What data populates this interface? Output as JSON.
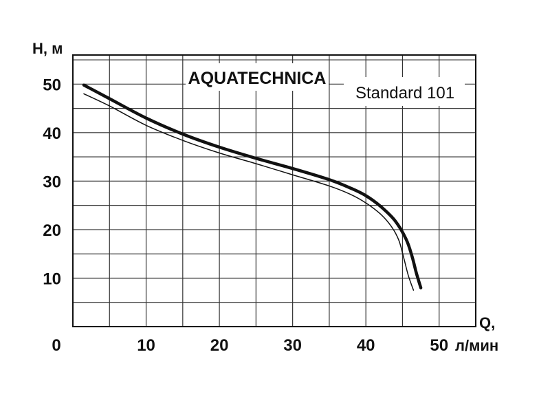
{
  "chart_data": {
    "type": "line",
    "title": "AQUATECHNICA",
    "subtitle": "Standard 101",
    "xlabel_top": "Q,",
    "xlabel_unit": "л/мин",
    "ylabel": "H, м",
    "xlim": [
      0,
      55
    ],
    "ylim": [
      0,
      56
    ],
    "x_ticks": [
      0,
      10,
      20,
      30,
      40,
      50
    ],
    "y_ticks": [
      10,
      20,
      30,
      40,
      50
    ],
    "grid": true,
    "colors": {
      "line": "#111111",
      "grid": "#333333",
      "background": "#ffffff"
    },
    "series": [
      {
        "x": [
          1.5,
          5,
          10,
          15,
          20,
          25,
          30,
          35,
          38,
          40,
          42,
          44,
          45.5,
          46.3,
          46.9,
          47.5
        ],
        "y": [
          49.8,
          47.0,
          43.0,
          39.7,
          37.0,
          34.7,
          32.6,
          30.3,
          28.5,
          27.0,
          24.8,
          21.8,
          18.0,
          14.5,
          11.0,
          8.0
        ]
      },
      {
        "x": [
          1.5,
          5,
          10,
          15,
          20,
          25,
          30,
          35,
          38,
          40,
          42,
          43.5,
          44.5,
          45.2,
          45.8,
          46.5
        ],
        "y": [
          48.0,
          45.5,
          41.5,
          38.4,
          35.8,
          33.6,
          31.3,
          29.0,
          27.2,
          25.5,
          23.2,
          20.6,
          17.8,
          14.0,
          10.5,
          7.5
        ]
      }
    ]
  }
}
